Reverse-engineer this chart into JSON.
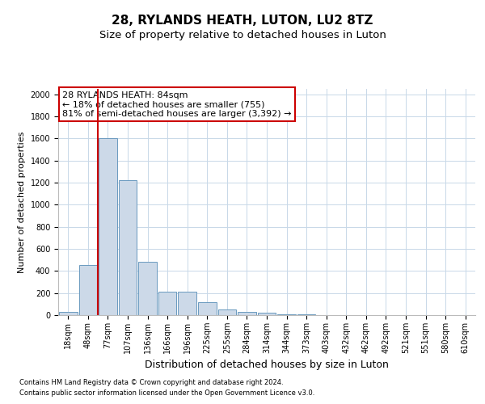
{
  "title": "28, RYLANDS HEATH, LUTON, LU2 8TZ",
  "subtitle": "Size of property relative to detached houses in Luton",
  "xlabel": "Distribution of detached houses by size in Luton",
  "ylabel": "Number of detached properties",
  "footnote1": "Contains HM Land Registry data © Crown copyright and database right 2024.",
  "footnote2": "Contains public sector information licensed under the Open Government Licence v3.0.",
  "categories": [
    "18sqm",
    "48sqm",
    "77sqm",
    "107sqm",
    "136sqm",
    "166sqm",
    "196sqm",
    "225sqm",
    "255sqm",
    "284sqm",
    "314sqm",
    "344sqm",
    "373sqm",
    "403sqm",
    "432sqm",
    "462sqm",
    "492sqm",
    "521sqm",
    "551sqm",
    "580sqm",
    "610sqm"
  ],
  "values": [
    30,
    455,
    1600,
    1220,
    480,
    210,
    210,
    120,
    50,
    30,
    20,
    10,
    5,
    3,
    2,
    1,
    1,
    0,
    0,
    0,
    0
  ],
  "bar_color": "#ccd9e8",
  "bar_edge_color": "#6a9abf",
  "red_line_index": 2,
  "annotation_text": "28 RYLANDS HEATH: 84sqm\n← 18% of detached houses are smaller (755)\n81% of semi-detached houses are larger (3,392) →",
  "annotation_box_color": "#ffffff",
  "annotation_box_edge": "#cc0000",
  "ylim": [
    0,
    2050
  ],
  "yticks": [
    0,
    200,
    400,
    600,
    800,
    1000,
    1200,
    1400,
    1600,
    1800,
    2000
  ],
  "bg_color": "#ffffff",
  "grid_color": "#c8d8e8",
  "title_fontsize": 11,
  "subtitle_fontsize": 9.5,
  "ylabel_fontsize": 8,
  "xlabel_fontsize": 9,
  "tick_fontsize": 7,
  "annot_fontsize": 8,
  "footnote_fontsize": 6
}
